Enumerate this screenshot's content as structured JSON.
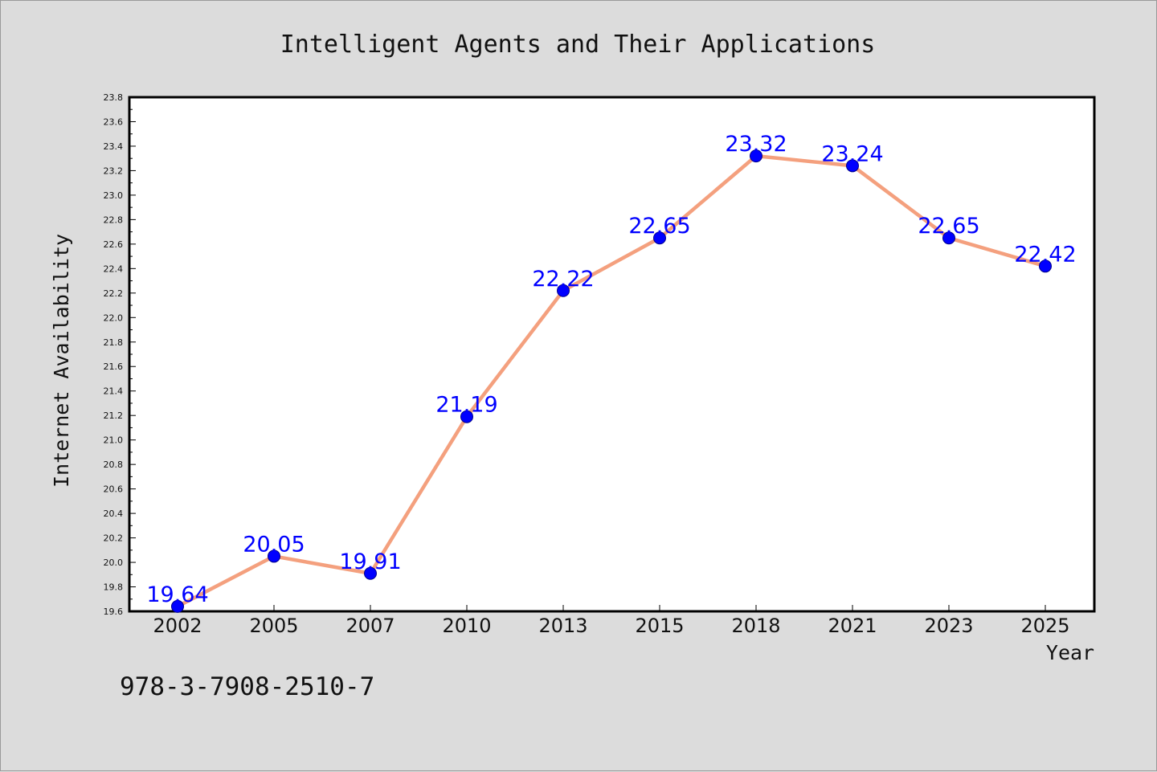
{
  "chart_data": {
    "type": "line",
    "title": "Intelligent Agents and Their Applications",
    "xlabel": "Year",
    "ylabel": "Internet Availability",
    "categories": [
      "2002",
      "2005",
      "2007",
      "2010",
      "2013",
      "2015",
      "2018",
      "2021",
      "2023",
      "2025"
    ],
    "series": [
      {
        "values": [
          19.64,
          20.05,
          19.91,
          21.19,
          22.22,
          22.65,
          23.32,
          23.24,
          22.65,
          22.42
        ],
        "labels": [
          "19.64",
          "20.05",
          "19.91",
          "21.19",
          "22.22",
          "22.65",
          "23.32",
          "23.24",
          "22.65",
          "22.42"
        ],
        "line_color": "#f4a07e",
        "marker_color": "#0000ff"
      }
    ],
    "ylim": [
      19.6,
      23.8
    ],
    "yticks": [
      "19.6",
      "19.8",
      "20.0",
      "20.2",
      "20.4",
      "20.6",
      "20.8",
      "21.0",
      "21.2",
      "21.4",
      "21.6",
      "21.8",
      "22.0",
      "22.2",
      "22.4",
      "22.6",
      "22.8",
      "23.0",
      "23.2",
      "23.4",
      "23.6",
      "23.8"
    ],
    "grid": false,
    "legend": "none"
  },
  "footer": {
    "isbn": "978-3-7908-2510-7"
  },
  "colors": {
    "background": "#dcdcdc",
    "plot_background": "#ffffff",
    "data_label": "#0000ff"
  }
}
